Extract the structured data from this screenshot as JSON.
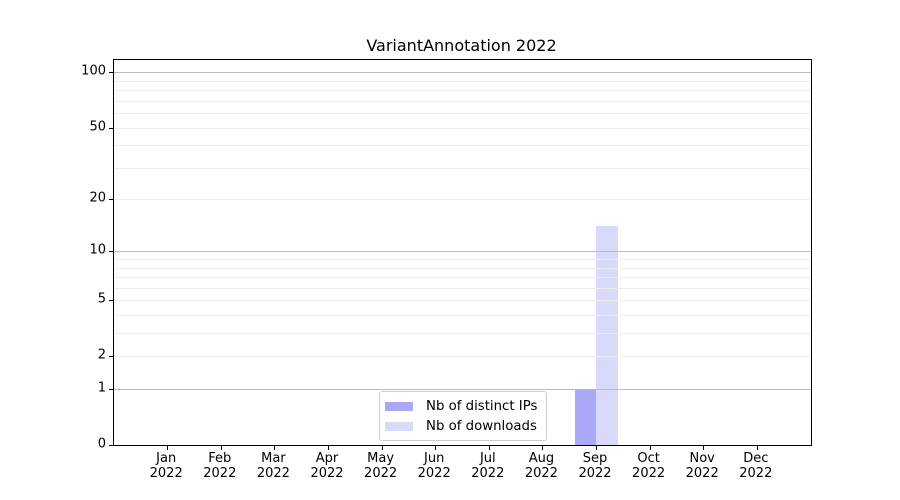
{
  "chart_data": {
    "type": "bar",
    "title": "VariantAnnotation 2022",
    "categories": [
      "Jan 2022",
      "Feb 2022",
      "Mar 2022",
      "Apr 2022",
      "May 2022",
      "Jun 2022",
      "Jul 2022",
      "Aug 2022",
      "Sep 2022",
      "Oct 2022",
      "Nov 2022",
      "Dec 2022"
    ],
    "series": [
      {
        "name": "Nb of distinct IPs",
        "color": "#a9a9f7",
        "values": [
          0,
          0,
          0,
          0,
          0,
          0,
          0,
          0,
          1,
          0,
          0,
          0
        ]
      },
      {
        "name": "Nb of downloads",
        "color": "#d9d9f9",
        "values": [
          0,
          0,
          0,
          0,
          0,
          0,
          0,
          0,
          14,
          0,
          0,
          0
        ]
      }
    ],
    "yscale": "log1p",
    "yticks": [
      0,
      1,
      2,
      5,
      10,
      20,
      50,
      100
    ],
    "ylim": [
      0,
      117
    ],
    "xlabel": "",
    "ylabel": "",
    "grid": "on",
    "legend_position": "lower center inside"
  },
  "colors": {
    "major_grid": "#bdbdbd",
    "minor_grid": "#ededed",
    "spine": "#000000",
    "background": "#ffffff"
  }
}
